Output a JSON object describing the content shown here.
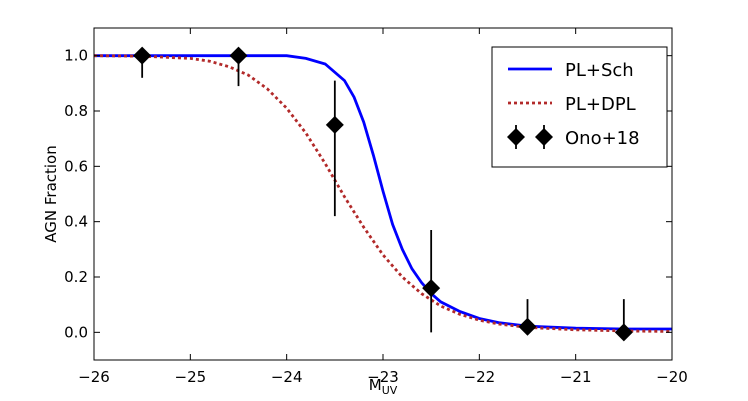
{
  "chart_data": {
    "type": "line",
    "xlabel_main": "M",
    "xlabel_sub": "UV",
    "ylabel": "AGN Fraction",
    "xlim": [
      -26,
      -20
    ],
    "ylim": [
      -0.1,
      1.1
    ],
    "x_ticks": [
      -26,
      -25,
      -24,
      -23,
      -22,
      -21,
      -20
    ],
    "x_tick_labels": [
      "−26",
      "−25",
      "−24",
      "−23",
      "−22",
      "−21",
      "−20"
    ],
    "y_ticks": [
      0.0,
      0.2,
      0.4,
      0.6,
      0.8,
      1.0
    ],
    "y_tick_labels": [
      "0.0",
      "0.2",
      "0.4",
      "0.6",
      "0.8",
      "1.0"
    ],
    "grid": false,
    "legend_position": "top-right",
    "series": [
      {
        "name": "PL+Sch",
        "style": "solid",
        "color": "#0000ff",
        "x": [
          -26.0,
          -25.5,
          -25.0,
          -24.5,
          -24.0,
          -23.8,
          -23.6,
          -23.4,
          -23.3,
          -23.2,
          -23.1,
          -23.0,
          -22.9,
          -22.8,
          -22.7,
          -22.6,
          -22.5,
          -22.4,
          -22.2,
          -22.0,
          -21.8,
          -21.5,
          -21.0,
          -20.5,
          -20.0
        ],
        "values": [
          1.0,
          1.0,
          1.0,
          1.0,
          1.0,
          0.99,
          0.97,
          0.91,
          0.85,
          0.76,
          0.64,
          0.51,
          0.39,
          0.3,
          0.23,
          0.18,
          0.14,
          0.11,
          0.075,
          0.05,
          0.035,
          0.022,
          0.015,
          0.012,
          0.012
        ]
      },
      {
        "name": "PL+DPL",
        "style": "dashed",
        "color": "#b22a2a",
        "x": [
          -26.0,
          -25.5,
          -25.0,
          -24.8,
          -24.6,
          -24.4,
          -24.2,
          -24.0,
          -23.8,
          -23.6,
          -23.4,
          -23.2,
          -23.0,
          -22.8,
          -22.6,
          -22.4,
          -22.2,
          -22.0,
          -21.8,
          -21.5,
          -21.0,
          -20.5,
          -20.0
        ],
        "values": [
          1.0,
          0.998,
          0.99,
          0.98,
          0.96,
          0.93,
          0.88,
          0.81,
          0.72,
          0.61,
          0.49,
          0.38,
          0.28,
          0.2,
          0.14,
          0.095,
          0.065,
          0.044,
          0.03,
          0.018,
          0.009,
          0.005,
          0.003
        ]
      },
      {
        "name": "Ono+18",
        "style": "markers",
        "marker": "diamond",
        "color": "#000000",
        "x": [
          -25.5,
          -24.5,
          -23.5,
          -22.5,
          -21.5,
          -20.5
        ],
        "values": [
          1.0,
          1.0,
          0.75,
          0.16,
          0.02,
          0.0
        ],
        "err_low": [
          0.08,
          0.11,
          0.33,
          0.16,
          0.02,
          0.0
        ],
        "err_high": [
          0.0,
          0.0,
          0.16,
          0.21,
          0.1,
          0.12
        ]
      }
    ]
  }
}
